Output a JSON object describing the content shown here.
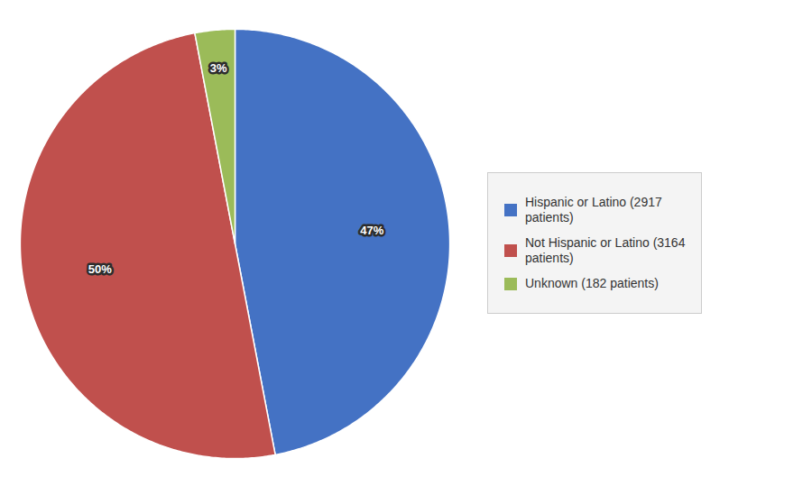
{
  "chart_data": {
    "type": "pie",
    "categories": [
      "Hispanic or Latino (2917\n patients)",
      "Not Hispanic or Latino (3164\n patients)",
      "Unknown (182 patients)"
    ],
    "values": [
      47,
      50,
      3
    ],
    "value_labels": [
      "47%",
      "50%",
      "3%"
    ],
    "colors": [
      "#4472C4",
      "#C0504D",
      "#9BBB59"
    ],
    "data_labels": true,
    "legend": "right"
  }
}
